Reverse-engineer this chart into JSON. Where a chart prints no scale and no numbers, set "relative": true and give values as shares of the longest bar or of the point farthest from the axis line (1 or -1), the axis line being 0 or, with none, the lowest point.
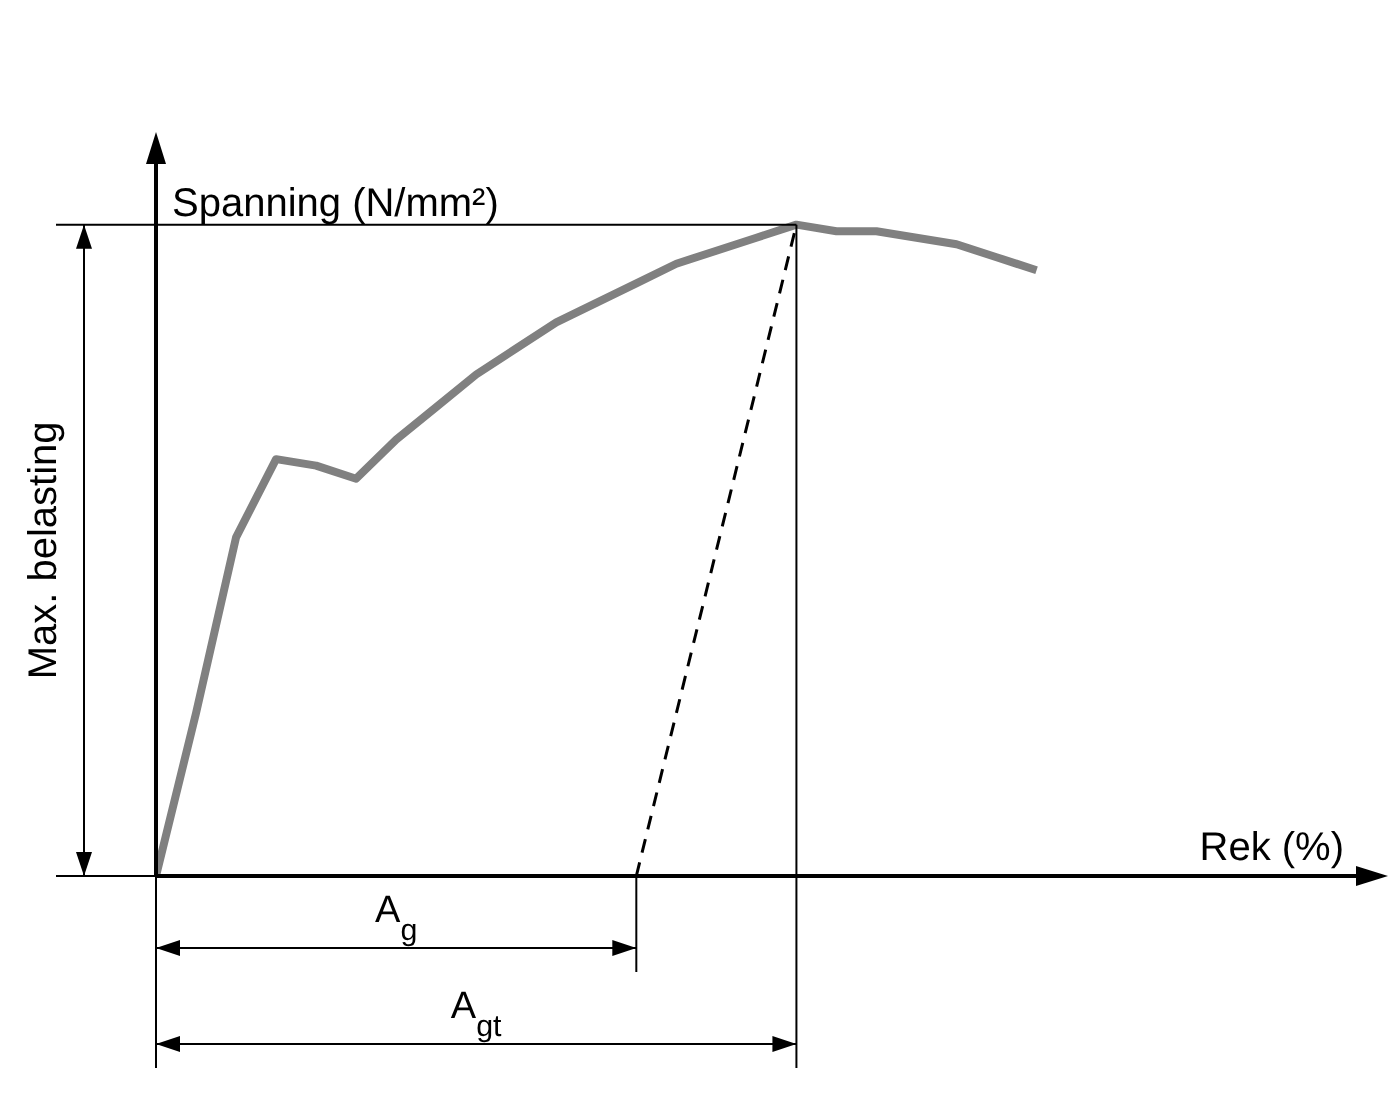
{
  "chart_data": {
    "type": "line",
    "relative": true,
    "xlabel": "Rek (%)",
    "ylabel": "Spanning (N/mm²)",
    "marker": "none",
    "categories": [
      null,
      null,
      null,
      null,
      null,
      null,
      null,
      null,
      null,
      null,
      null,
      null,
      null,
      null,
      null,
      null,
      null,
      null,
      null,
      null,
      null,
      null,
      null
    ],
    "series": [
      {
        "color": "#808080",
        "line_style": "solid",
        "values": [
          0,
          0.25,
          0.52,
          0.64,
          0.63,
          0.61,
          0.67,
          0.72,
          0.77,
          0.81,
          0.85,
          0.88,
          0.91,
          0.94,
          0.96,
          0.98,
          1,
          0.99,
          0.99,
          0.98,
          0.97,
          0.95,
          0.93
        ]
      },
      {
        "color": "#000000",
        "line_style": "dashed",
        "values": [
          null,
          null,
          null,
          null,
          null,
          null,
          null,
          null,
          null,
          null,
          null,
          null,
          0,
          null,
          null,
          null,
          1,
          null,
          null,
          null,
          null,
          null,
          null
        ]
      }
    ],
    "annotations": [
      "Max. belasting",
      "A$_{g}$",
      "A$_{gt}$"
    ]
  }
}
